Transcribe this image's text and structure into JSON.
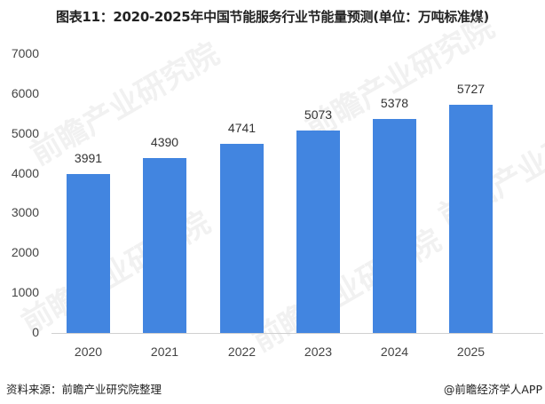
{
  "title": "图表11：2020-2025年中国节能服务行业节能量预测(单位：万吨标准煤)",
  "y_ticks": [
    "7000",
    "6000",
    "5000",
    "4000",
    "3000",
    "2000",
    "1000",
    "0"
  ],
  "bars": [
    {
      "year": "2020",
      "value": "3991"
    },
    {
      "year": "2021",
      "value": "4390"
    },
    {
      "year": "2022",
      "value": "4741"
    },
    {
      "year": "2023",
      "value": "5073"
    },
    {
      "year": "2024",
      "value": "5378"
    },
    {
      "year": "2025",
      "value": "5727"
    }
  ],
  "footer": {
    "source": "资料来源：前瞻产业研究院整理",
    "credit": "@前瞻经济学人APP"
  },
  "watermark": "前瞻产业研究院",
  "colors": {
    "bar": "#4285e0"
  },
  "chart_data": {
    "type": "bar",
    "title": "图表11：2020-2025年中国节能服务行业节能量预测(单位：万吨标准煤)",
    "categories": [
      "2020",
      "2021",
      "2022",
      "2023",
      "2024",
      "2025"
    ],
    "values": [
      3991,
      4390,
      4741,
      5073,
      5378,
      5727
    ],
    "xlabel": "",
    "ylabel": "",
    "unit": "万吨标准煤",
    "ylim": [
      0,
      7000
    ],
    "yticks": [
      0,
      1000,
      2000,
      3000,
      4000,
      5000,
      6000,
      7000
    ],
    "grid": false,
    "legend": null,
    "data_labels": true
  }
}
